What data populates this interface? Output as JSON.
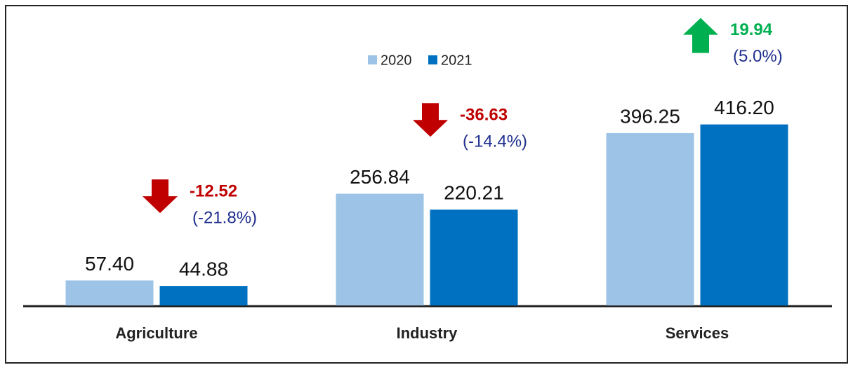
{
  "chart_data": {
    "type": "bar",
    "categories": [
      "Agriculture",
      "Industry",
      "Services"
    ],
    "series": [
      {
        "name": "2020",
        "color": "#9dc3e6",
        "values": [
          57.4,
          256.84,
          396.25
        ],
        "value_labels": [
          "57.40",
          "256.84",
          "396.25"
        ]
      },
      {
        "name": "2021",
        "color": "#0070c0",
        "values": [
          44.88,
          220.21,
          416.2
        ],
        "value_labels": [
          "44.88",
          "220.21",
          "416.20"
        ]
      }
    ],
    "ylim": [
      0,
      480
    ],
    "annotations": [
      {
        "text": "-12.52",
        "percent": "(-21.8%)",
        "direction": "down",
        "color": "#c00000"
      },
      {
        "text": "-36.63",
        "percent": "(-14.4%)",
        "direction": "down",
        "color": "#c00000"
      },
      {
        "text": "19.94",
        "percent": "(5.0%)",
        "direction": "up",
        "color": "#00b050"
      }
    ],
    "legend": "top"
  }
}
